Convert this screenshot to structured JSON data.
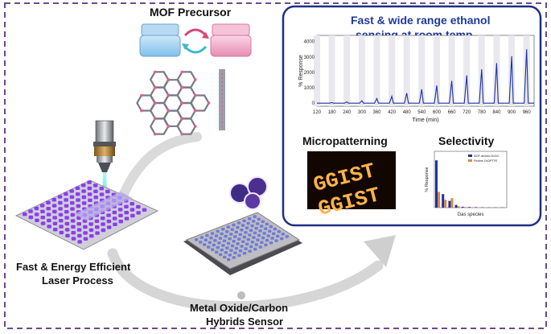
{
  "labels": {
    "precursor": "MOF Precursor",
    "laser_line1": "Fast & Energy Efficient",
    "laser_line2": "Laser Process",
    "sensor_line1": "Metal Oxide/Carbon",
    "sensor_line2": "Hybrids Sensor"
  },
  "panel": {
    "title_line1": "Fast & wide range ethanol",
    "title_line2": "sensing at room temp.",
    "micropatterning": "Micropatterning",
    "selectivity": "Selectivity",
    "pattern_text": "GGIST"
  },
  "colors": {
    "panel_border": "#1f2f86",
    "title_blue": "#1f3a9e",
    "frame_purple": "#6a4a8c",
    "pad_purple": "#8a3cf0"
  },
  "chart_data": [
    {
      "type": "line",
      "xlabel": "Time (min)",
      "ylabel": "% Response",
      "xlim": [
        120,
        990
      ],
      "ylim": [
        -200,
        4400
      ],
      "xticks": [
        120,
        180,
        240,
        300,
        360,
        420,
        480,
        540,
        600,
        660,
        720,
        780,
        840,
        900,
        960
      ],
      "yticks": [
        0,
        1000,
        2000,
        3000,
        4000
      ],
      "series": [
        {
          "peaks_x": [
            180,
            240,
            300,
            360,
            420,
            480,
            540,
            600,
            660,
            720,
            780,
            840,
            900,
            960
          ],
          "peaks_y": [
            40,
            90,
            160,
            300,
            450,
            650,
            900,
            1150,
            1450,
            1800,
            2200,
            2600,
            3050,
            3500
          ]
        }
      ]
    },
    {
      "type": "bar",
      "title": "Selectivity",
      "xlabel": "Gas species",
      "ylabel": "% Response",
      "categories": [
        "EtOH",
        "MeOH",
        "IPA",
        "Ace",
        "NH3",
        "H2S",
        "NO2",
        "CO",
        "CH4",
        "H2",
        "SO2"
      ],
      "series": [
        {
          "name": "MOF-derived ZnO/C",
          "values": [
            2100,
            600,
            300,
            120,
            40,
            30,
            20,
            15,
            10,
            10,
            10
          ]
        },
        {
          "name": "Pristine ZnO/PTFE",
          "values": [
            700,
            350,
            420,
            60,
            30,
            20,
            15,
            10,
            10,
            5,
            5
          ]
        }
      ]
    }
  ]
}
